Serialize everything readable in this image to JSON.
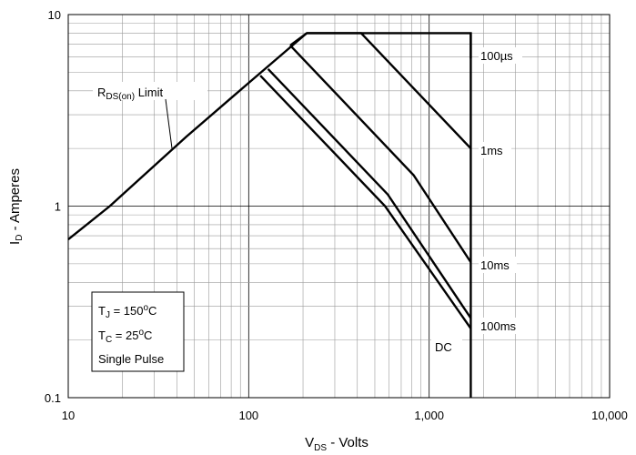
{
  "chart_data": {
    "type": "line",
    "title": "",
    "xlabel": {
      "main": "V",
      "sub": "DS",
      "rest": " - Volts"
    },
    "ylabel": {
      "main": "I",
      "sub": "D",
      "rest": " - Amperes"
    },
    "x_scale": "log",
    "y_scale": "log",
    "xlim": [
      10,
      10000
    ],
    "ylim": [
      0.1,
      10
    ],
    "x_ticks": [
      {
        "value": 10,
        "label": "10"
      },
      {
        "value": 100,
        "label": "100"
      },
      {
        "value": 1000,
        "label": "1,000"
      },
      {
        "value": 10000,
        "label": "10,000"
      }
    ],
    "y_ticks": [
      {
        "value": 0.1,
        "label": "0.1"
      },
      {
        "value": 1,
        "label": "1"
      },
      {
        "value": 10,
        "label": "10"
      }
    ],
    "grid": true,
    "series": [
      {
        "name": "RDS(on) Limit",
        "points": [
          [
            10,
            0.67
          ],
          [
            17,
            1.0
          ],
          [
            45,
            2.3
          ],
          [
            100,
            4.4
          ],
          [
            210,
            8.0
          ]
        ]
      },
      {
        "name": "100µs",
        "points": [
          [
            210,
            8.0
          ],
          [
            1700,
            8.0
          ],
          [
            1700,
            5.9
          ]
        ]
      },
      {
        "name": "1ms",
        "points": [
          [
            170,
            6.9
          ],
          [
            210,
            8.0
          ],
          [
            420,
            8.0
          ],
          [
            1700,
            2.0
          ]
        ]
      },
      {
        "name": "10ms",
        "points": [
          [
            170,
            6.9
          ],
          [
            820,
            1.45
          ],
          [
            1700,
            0.51
          ]
        ]
      },
      {
        "name": "100ms",
        "points": [
          [
            128,
            5.2
          ],
          [
            590,
            1.15
          ],
          [
            1700,
            0.26
          ]
        ]
      },
      {
        "name": "DC",
        "points": [
          [
            116,
            4.8
          ],
          [
            570,
            1.0
          ],
          [
            1700,
            0.23
          ]
        ]
      },
      {
        "name": "",
        "points": [
          [
            1700,
            8.0
          ],
          [
            1700,
            0.1
          ]
        ]
      }
    ],
    "annotations": {
      "rds": {
        "main": "R",
        "sub": "DS(on)",
        "rest": " Limit"
      },
      "labels": [
        "100µs",
        "1ms",
        "10ms",
        "100ms",
        "DC"
      ],
      "conditions": [
        {
          "main": "T",
          "sub": "J",
          "rest": " = 150",
          "sup": "o",
          "unit": "C"
        },
        {
          "main": "T",
          "sub": "C",
          "rest": " = 25",
          "sup": "o",
          "unit": "C"
        },
        {
          "main": "Single Pulse",
          "sub": "",
          "rest": "",
          "sup": "",
          "unit": ""
        }
      ]
    }
  }
}
